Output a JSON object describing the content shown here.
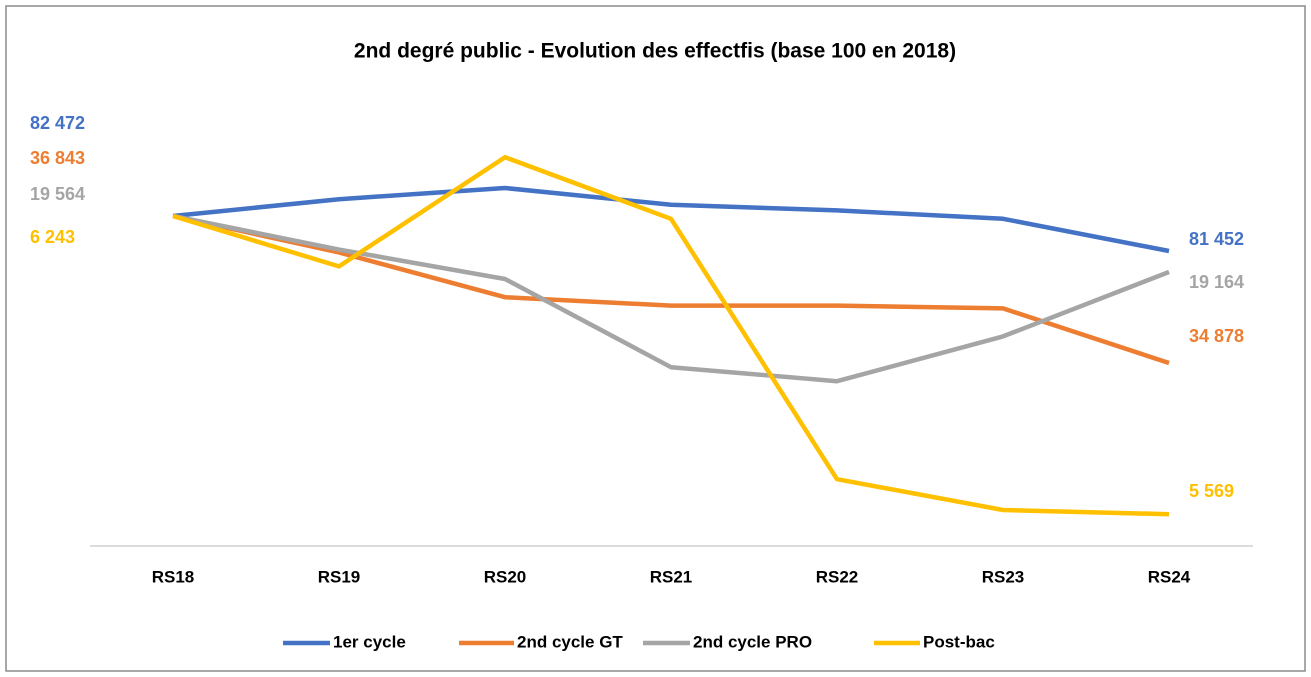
{
  "chart_data": {
    "type": "line",
    "title": "2nd degré public - Evolution des effectfis (base 100 en 2018)",
    "categories": [
      "RS18",
      "RS19",
      "RS20",
      "RS21",
      "RS22",
      "RS23",
      "RS24"
    ],
    "ylim": [
      88.2,
      104.5
    ],
    "legend": "bottom",
    "series": [
      {
        "name": "1er cycle",
        "color": "#4472c4",
        "values": [
          100,
          100.6,
          101.0,
          100.4,
          100.2,
          99.9,
          98.75
        ],
        "start_label": "82 472",
        "end_label": "81 452"
      },
      {
        "name": "2nd cycle GT",
        "color": "#ed7d31",
        "values": [
          100,
          98.7,
          97.1,
          96.8,
          96.8,
          96.7,
          94.75
        ],
        "start_label": "36 843",
        "end_label": "34 878"
      },
      {
        "name": "2nd cycle PRO",
        "color": "#a5a5a5",
        "values": [
          100,
          98.8,
          97.75,
          94.6,
          94.1,
          95.7,
          98.0
        ],
        "start_label": "19 564",
        "end_label": "19 164"
      },
      {
        "name": "Post-bac",
        "color": "#ffc000",
        "values": [
          100,
          98.2,
          102.1,
          99.9,
          90.6,
          89.5,
          89.35
        ],
        "start_label": "6 243",
        "end_label": "5 569"
      }
    ]
  }
}
